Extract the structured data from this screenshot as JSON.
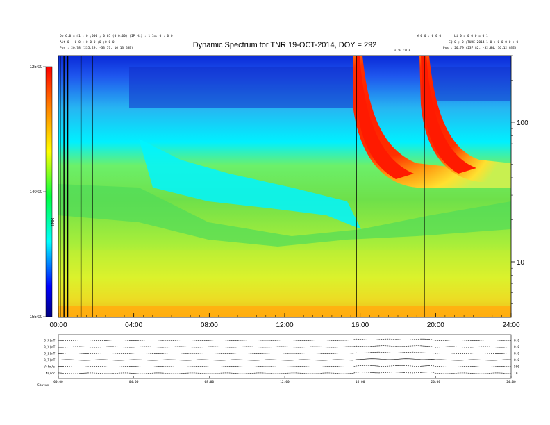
{
  "header": {
    "title": "Dynamic Spectrum for TNR 19-OCT-2014, DOY = 292",
    "left_lines": [
      "Do 6.0 = 41 : 0 ;000 ; 0 05 (0 0:00) (IP Hi) : 1 1=: 0 : 0 0",
      "Alt 0 ; 0 0 : 0 0 0 ;0 ;0 0 0",
      "Pos :  20.78 (235.29, -33.57, 16.13 GSE)"
    ],
    "right_lines": [
      "W  0 0 : 0 0 0",
      "Li 0 = 0 0 0 = 0 1",
      "EQ  0 ; 0 ;TURE 2014 1 0 : 0 0 0 0 : 0",
      "Pos :  20.79 (237.82, -32.84, 16.12 GSE)"
    ],
    "mid_label": "0 :0 :0 0"
  },
  "chart_data": [
    {
      "type": "heatmap",
      "title": "Dynamic Spectrum for TNR 19-OCT-2014, DOY = 292",
      "x_ticks": [
        "00:00",
        "04:00",
        "08:00",
        "12:00",
        "16:00",
        "20:00",
        "24:00"
      ],
      "xlim_hours": [
        0,
        24
      ],
      "y_scale": "log",
      "y_ticks": [
        "100",
        "10"
      ],
      "ylim": [
        4,
        300
      ],
      "colorbar": {
        "ticks": [
          "-125.00",
          "-140.00",
          "-155.00"
        ],
        "range": [
          -155,
          -125
        ],
        "label": "TNR",
        "colors": [
          "#000080",
          "#0000ff",
          "#00ffff",
          "#00ff40",
          "#ffff00",
          "#ff8000",
          "#ff0000"
        ]
      },
      "features": [
        {
          "name": "burst-1",
          "start_hour": 15.7,
          "drift_end_hour": 18.0,
          "band_floor": 40
        },
        {
          "name": "burst-2",
          "start_hour": 19.2,
          "drift_end_hour": 21.5,
          "band_floor": 40
        }
      ],
      "vertical_lines_hours": [
        0.1,
        0.3,
        0.5,
        1.2,
        1.8,
        15.8,
        19.4
      ]
    },
    {
      "type": "line",
      "x_ticks": [
        "00:00",
        "04:00",
        "08:00",
        "12:00",
        "16:00",
        "20:00",
        "24:00"
      ],
      "series": [
        {
          "name": "B_X(nT)",
          "right_label": "0.0"
        },
        {
          "name": "B_Y(nT)",
          "right_label": "0.0"
        },
        {
          "name": "B_Z(nT)",
          "right_label": "0.0"
        },
        {
          "name": "B_T(nT)",
          "right_label": "0.0"
        },
        {
          "name": "V(km/s)",
          "right_label": "500"
        },
        {
          "name": "N(/cc)",
          "right_label": "10"
        }
      ],
      "status_label": "Status"
    }
  ]
}
